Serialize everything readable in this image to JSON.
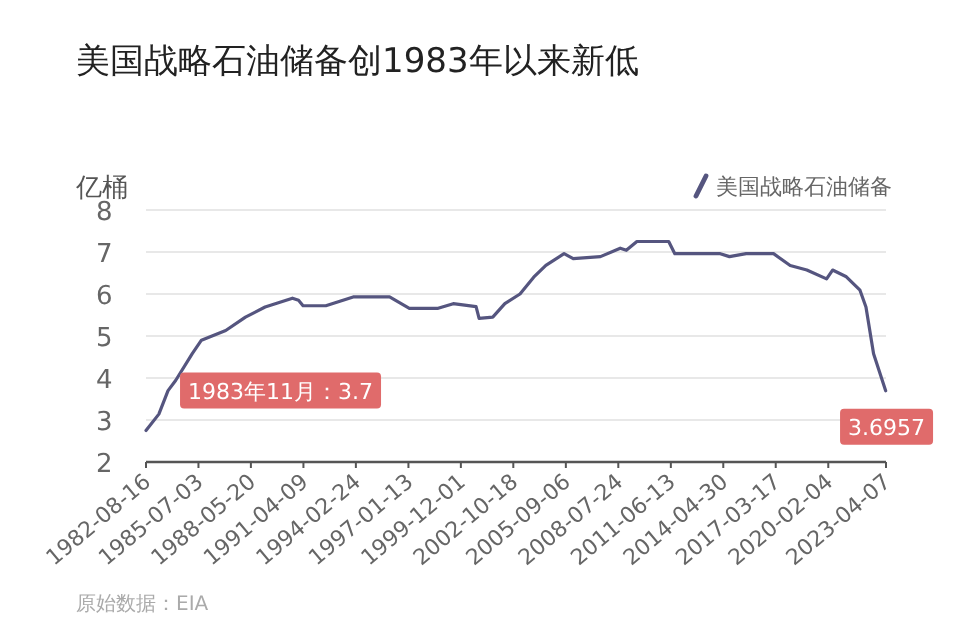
{
  "chart_data": {
    "type": "line",
    "title": "美国战略石油储备创1983年以来新低",
    "ylabel": "亿桶",
    "legend": "top right",
    "grid": "y",
    "marker": "none",
    "line_style": "solid",
    "x": [
      "1982-08-16",
      "1983-05",
      "1983-11",
      "1984-04",
      "1985-03",
      "1985-09",
      "1987-01",
      "1988-02",
      "1989-03",
      "1990-09",
      "1991-01",
      "1991-04",
      "1992-07",
      "1994-01",
      "1996-01",
      "1997-02",
      "1998-09",
      "1999-07",
      "2000-10",
      "2000-12",
      "2001-09",
      "2002-05",
      "2003-03",
      "2003-12",
      "2004-08",
      "2005-08",
      "2006-02",
      "2007-08",
      "2008-09",
      "2009-01",
      "2009-08",
      "2011-05",
      "2011-09",
      "2014-03",
      "2014-09",
      "2015-08",
      "2017-02",
      "2018-01",
      "2018-12",
      "2020-01",
      "2020-05",
      "2021-02",
      "2021-11",
      "2022-03",
      "2022-08",
      "2023-03-31"
    ],
    "series": [
      {
        "name": "美国战略石油储备",
        "color": "#55557f",
        "values": [
          2.75,
          3.14,
          3.7,
          3.94,
          4.58,
          4.9,
          5.13,
          5.45,
          5.69,
          5.9,
          5.85,
          5.72,
          5.72,
          5.93,
          5.93,
          5.66,
          5.66,
          5.77,
          5.7,
          5.42,
          5.45,
          5.77,
          6.0,
          6.4,
          6.68,
          6.96,
          6.84,
          6.89,
          7.09,
          7.04,
          7.25,
          7.25,
          6.96,
          6.96,
          6.89,
          6.96,
          6.96,
          6.68,
          6.57,
          6.36,
          6.57,
          6.41,
          6.09,
          5.69,
          4.58,
          3.6957
        ]
      }
    ],
    "xlim": [
      "1982-08-16",
      "2023-04-07"
    ],
    "xticks": [
      {
        "value": "1982-08-16",
        "label": "1982-08-16"
      },
      {
        "value": "1985-07-03",
        "label": "1985-07-03"
      },
      {
        "value": "1988-05-20",
        "label": "1988-05-20"
      },
      {
        "value": "1991-04-09",
        "label": "1991-04-09"
      },
      {
        "value": "1994-02-24",
        "label": "1994-02-24"
      },
      {
        "value": "1997-01-13",
        "label": "1997-01-13"
      },
      {
        "value": "1999-12-01",
        "label": "1999-12-01"
      },
      {
        "value": "2002-10-18",
        "label": "2002-10-18"
      },
      {
        "value": "2005-09-06",
        "label": "2005-09-06"
      },
      {
        "value": "2008-07-24",
        "label": "2008-07-24"
      },
      {
        "value": "2011-06-13",
        "label": "2011-06-13"
      },
      {
        "value": "2014-04-30",
        "label": "2014-04-30"
      },
      {
        "value": "2017-03-17",
        "label": "2017-03-17"
      },
      {
        "value": "2020-02-04",
        "label": "2020-02-04"
      },
      {
        "value": "2023-04-07",
        "label": "2023-04-07"
      }
    ],
    "ylim": [
      2,
      8
    ],
    "yticks": [
      2,
      3,
      4,
      5,
      6,
      7,
      8
    ],
    "annotations": [
      {
        "text": "1983年11月：3.7",
        "x": "1983-11",
        "y": 3.7
      },
      {
        "text": "3.6957",
        "x": "2023-03-31",
        "y": 3.6957
      },
      "原始数据：EIA"
    ]
  }
}
